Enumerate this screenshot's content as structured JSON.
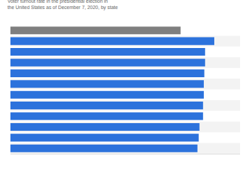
{
  "chart_data": {
    "type": "bar",
    "orientation": "horizontal",
    "title": "Voter turnout rate in the presidential election in the United States as of December 7, 2020, by state",
    "categories": [
      null,
      null,
      null,
      null,
      null,
      null,
      null,
      null,
      null,
      null,
      null,
      null
    ],
    "values": [
      66.7,
      79.9,
      76.3,
      76.3,
      76.0,
      75.8,
      75.8,
      75.5,
      75.5,
      74.1,
      73.8,
      73.3
    ],
    "colors": [
      "#7f7f7f",
      "#2c72dc",
      "#2c72dc",
      "#2c72dc",
      "#2c72dc",
      "#2c72dc",
      "#2c72dc",
      "#2c72dc",
      "#2c72dc",
      "#2c72dc",
      "#2c72dc",
      "#2c72dc"
    ],
    "xlim": [
      0,
      90
    ],
    "grid": false,
    "tick_labels": false
  }
}
